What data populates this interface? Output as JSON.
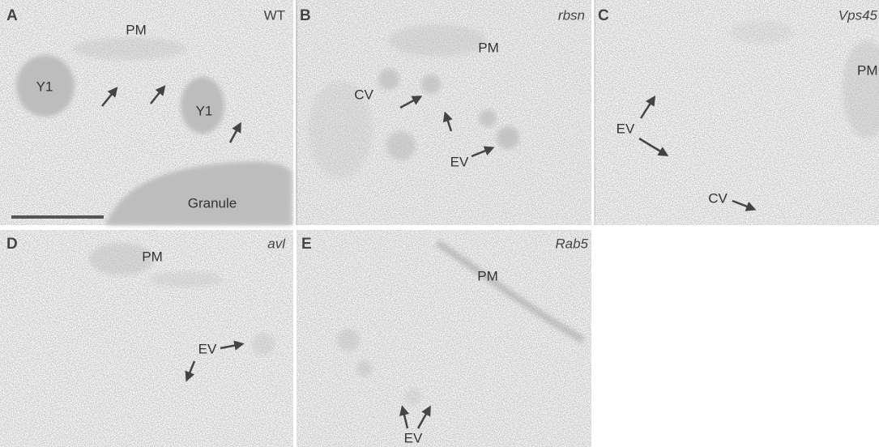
{
  "panels": [
    {
      "letter": "A",
      "genotype": "WT",
      "labels": [
        "PM",
        "Y1",
        "Y1",
        "Granule"
      ]
    },
    {
      "letter": "B",
      "genotype": "rbsn",
      "labels": [
        "PM",
        "CV",
        "EV"
      ]
    },
    {
      "letter": "C",
      "genotype": "Vps45",
      "labels": [
        "PM",
        "EV",
        "CV"
      ]
    },
    {
      "letter": "D",
      "genotype": "avl",
      "labels": [
        "PM",
        "EV"
      ]
    },
    {
      "letter": "E",
      "genotype": "Rab5",
      "labels": [
        "PM",
        "EV"
      ]
    }
  ]
}
